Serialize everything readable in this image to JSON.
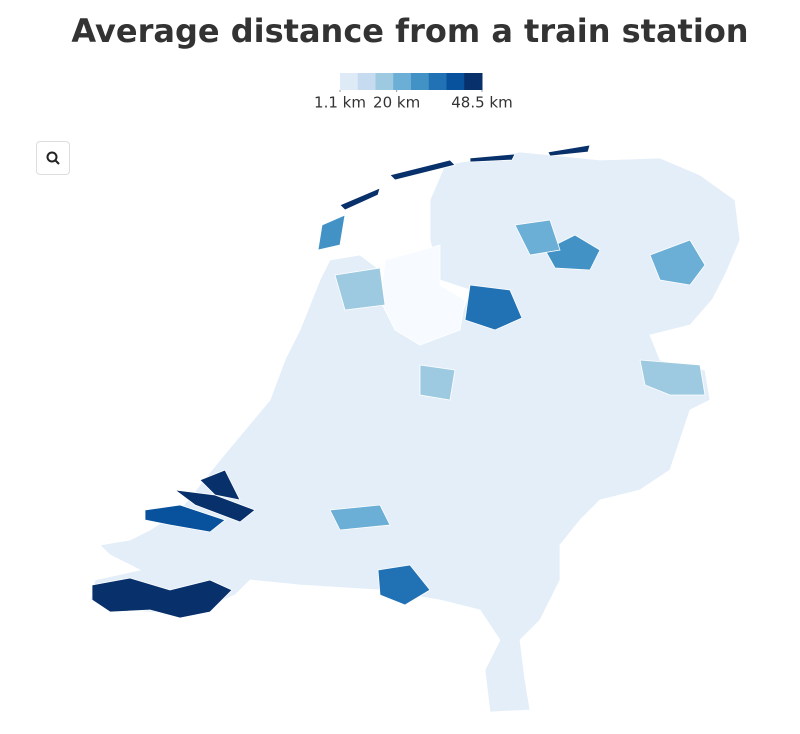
{
  "chart_data": {
    "type": "choropleth",
    "title": "Average distance from a train station",
    "legend": {
      "colors": [
        "#deebf7",
        "#c6dbef",
        "#9ecae1",
        "#6baed6",
        "#4292c6",
        "#2171b5",
        "#08519c",
        "#08306b"
      ],
      "lim": [
        1.1,
        48.5
      ],
      "ticks": [
        {
          "value": 1.1,
          "label": "1.1 km"
        },
        {
          "value": 20,
          "label": "20 km"
        },
        {
          "value": 48.5,
          "label": "48.5 km"
        }
      ]
    }
  }
}
